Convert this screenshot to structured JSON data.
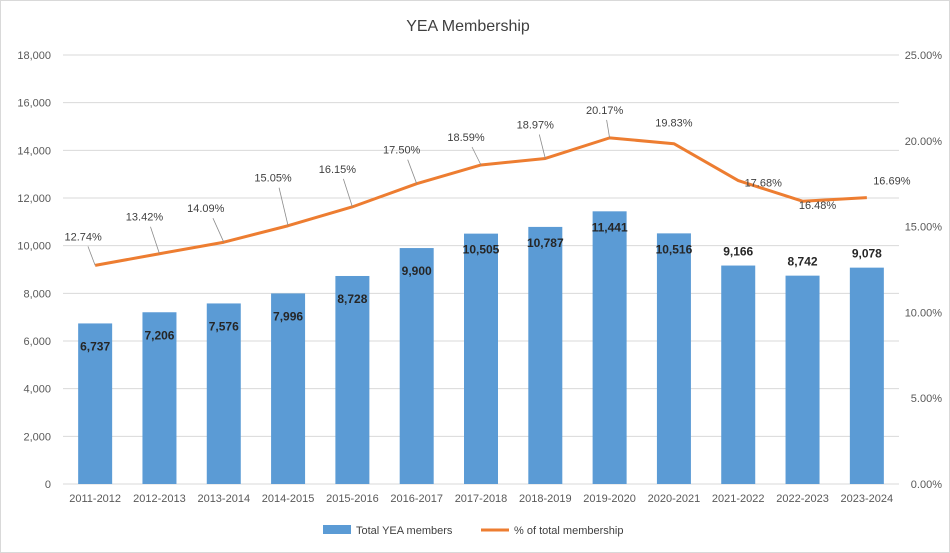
{
  "chart_data": {
    "type": "bar+line",
    "title": "YEA Membership",
    "categories": [
      "2011-2012",
      "2012-2013",
      "2013-2014",
      "2014-2015",
      "2015-2016",
      "2016-2017",
      "2017-2018",
      "2018-2019",
      "2019-2020",
      "2020-2021",
      "2021-2022",
      "2022-2023",
      "2023-2024"
    ],
    "series": [
      {
        "name": "Total YEA members",
        "type": "bar",
        "axis": "left",
        "color": "#5B9BD5",
        "values": [
          6737,
          7206,
          7576,
          7996,
          8728,
          9900,
          10505,
          10787,
          11441,
          10516,
          9166,
          8742,
          9078
        ],
        "labels": [
          "6,737",
          "7,206",
          "7,576",
          "7,996",
          "8,728",
          "9,900",
          "10,505",
          "10,787",
          "11,441",
          "10,516",
          "9,166",
          "8,742",
          "9,078"
        ]
      },
      {
        "name": "% of total membership",
        "type": "line",
        "axis": "right",
        "color": "#ED7D31",
        "values": [
          12.74,
          13.42,
          14.09,
          15.05,
          16.15,
          17.5,
          18.59,
          18.97,
          20.17,
          19.83,
          17.68,
          16.48,
          16.69
        ],
        "labels": [
          "12.74%",
          "13.42%",
          "14.09%",
          "15.05%",
          "16.15%",
          "17.50%",
          "18.59%",
          "18.97%",
          "20.17%",
          "19.83%",
          "17.68%",
          "16.48%",
          "16.69%"
        ]
      }
    ],
    "y_left": {
      "range": [
        0,
        18000
      ],
      "ticks": [
        "0",
        "2,000",
        "4,000",
        "6,000",
        "8,000",
        "10,000",
        "12,000",
        "14,000",
        "16,000",
        "18,000"
      ]
    },
    "y_right": {
      "range": [
        0,
        25
      ],
      "ticks": [
        "0.00%",
        "5.00%",
        "10.00%",
        "15.00%",
        "20.00%",
        "25.00%"
      ]
    },
    "grid": true,
    "legend_position": "bottom"
  }
}
